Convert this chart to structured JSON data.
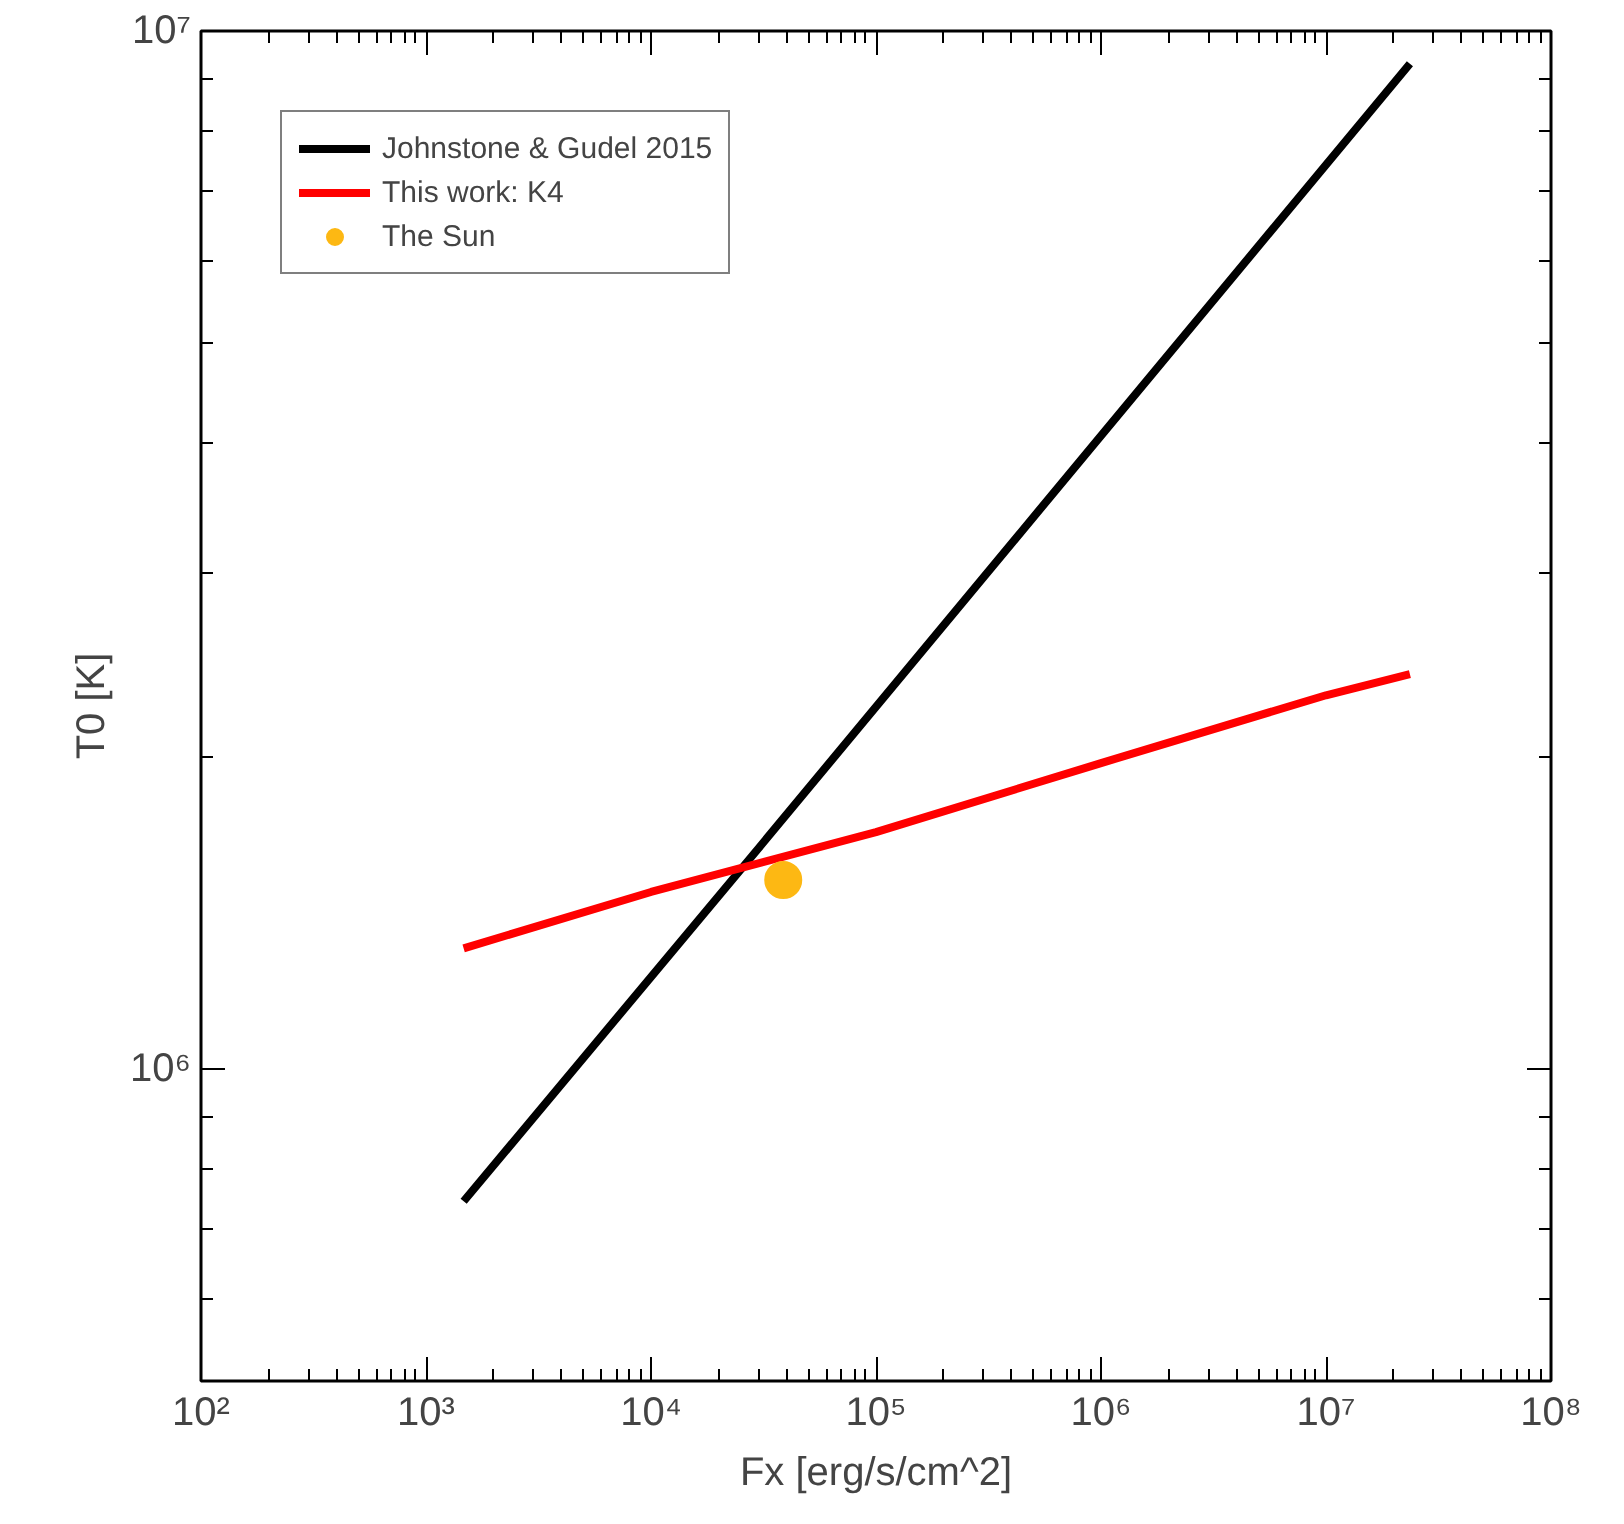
{
  "chart_data": {
    "type": "line",
    "xlabel": "Fx [erg/s/cm^2]",
    "ylabel": "T0 [K]",
    "log": "xy",
    "grid": false,
    "legend": "top left",
    "line_style": "solid",
    "xlim": [
      100,
      100000000
    ],
    "ylim": [
      500000,
      10000000
    ],
    "xticks": [
      {
        "value": 100,
        "label": "10²"
      },
      {
        "value": 1000,
        "label": "10³"
      },
      {
        "value": 10000,
        "label": "10⁴"
      },
      {
        "value": 100000,
        "label": "10⁵"
      },
      {
        "value": 1000000,
        "label": "10⁶"
      },
      {
        "value": 10000000,
        "label": "10⁷"
      },
      {
        "value": 100000000,
        "label": "10⁸"
      },
      {
        "value": 200,
        "label": null
      },
      {
        "value": 300,
        "label": null
      },
      {
        "value": 400,
        "label": null
      },
      {
        "value": 500,
        "label": null
      },
      {
        "value": 600,
        "label": null
      },
      {
        "value": 700,
        "label": null
      },
      {
        "value": 800,
        "label": null
      },
      {
        "value": 900,
        "label": null
      },
      {
        "value": 2000,
        "label": null
      },
      {
        "value": 3000,
        "label": null
      },
      {
        "value": 4000,
        "label": null
      },
      {
        "value": 5000,
        "label": null
      },
      {
        "value": 6000,
        "label": null
      },
      {
        "value": 7000,
        "label": null
      },
      {
        "value": 8000,
        "label": null
      },
      {
        "value": 9000,
        "label": null
      },
      {
        "value": 20000,
        "label": null
      },
      {
        "value": 30000,
        "label": null
      },
      {
        "value": 40000,
        "label": null
      },
      {
        "value": 50000,
        "label": null
      },
      {
        "value": 60000,
        "label": null
      },
      {
        "value": 70000,
        "label": null
      },
      {
        "value": 80000,
        "label": null
      },
      {
        "value": 90000,
        "label": null
      },
      {
        "value": 200000,
        "label": null
      },
      {
        "value": 300000,
        "label": null
      },
      {
        "value": 400000,
        "label": null
      },
      {
        "value": 500000,
        "label": null
      },
      {
        "value": 600000,
        "label": null
      },
      {
        "value": 700000,
        "label": null
      },
      {
        "value": 800000,
        "label": null
      },
      {
        "value": 900000,
        "label": null
      },
      {
        "value": 2000000,
        "label": null
      },
      {
        "value": 3000000,
        "label": null
      },
      {
        "value": 4000000,
        "label": null
      },
      {
        "value": 5000000,
        "label": null
      },
      {
        "value": 6000000,
        "label": null
      },
      {
        "value": 7000000,
        "label": null
      },
      {
        "value": 8000000,
        "label": null
      },
      {
        "value": 9000000,
        "label": null
      },
      {
        "value": 20000000,
        "label": null
      },
      {
        "value": 30000000,
        "label": null
      },
      {
        "value": 40000000,
        "label": null
      },
      {
        "value": 50000000,
        "label": null
      },
      {
        "value": 60000000,
        "label": null
      },
      {
        "value": 70000000,
        "label": null
      },
      {
        "value": 80000000,
        "label": null
      },
      {
        "value": 90000000,
        "label": null
      }
    ],
    "yticks": [
      {
        "value": 1000000,
        "label": "10⁶"
      },
      {
        "value": 10000000,
        "label": "10⁷"
      },
      {
        "value": 600000,
        "label": null
      },
      {
        "value": 700000,
        "label": null
      },
      {
        "value": 800000,
        "label": null
      },
      {
        "value": 900000,
        "label": null
      },
      {
        "value": 2000000,
        "label": null
      },
      {
        "value": 3000000,
        "label": null
      },
      {
        "value": 4000000,
        "label": null
      },
      {
        "value": 5000000,
        "label": null
      },
      {
        "value": 6000000,
        "label": null
      },
      {
        "value": 7000000,
        "label": null
      },
      {
        "value": 8000000,
        "label": null
      },
      {
        "value": 9000000,
        "label": null
      }
    ],
    "series": [
      {
        "name": "Johnstone & Gudel 2015",
        "color": "#000000",
        "x": [
          1470,
          30000,
          23600000
        ],
        "values": [
          745000,
          1630000,
          9300000
        ]
      },
      {
        "name": "This work: K4",
        "color": "#ff0000",
        "x": [
          1470,
          10000,
          100000,
          1000000,
          10000000,
          23600000
        ],
        "values": [
          1306000,
          1480000,
          1690000,
          1970000,
          2290000,
          2400000
        ]
      },
      {
        "name": "The Sun",
        "type": "scatter",
        "marker": "circle",
        "color": "#fdb813",
        "x": [
          38700
        ],
        "values": [
          1520000
        ]
      }
    ]
  }
}
